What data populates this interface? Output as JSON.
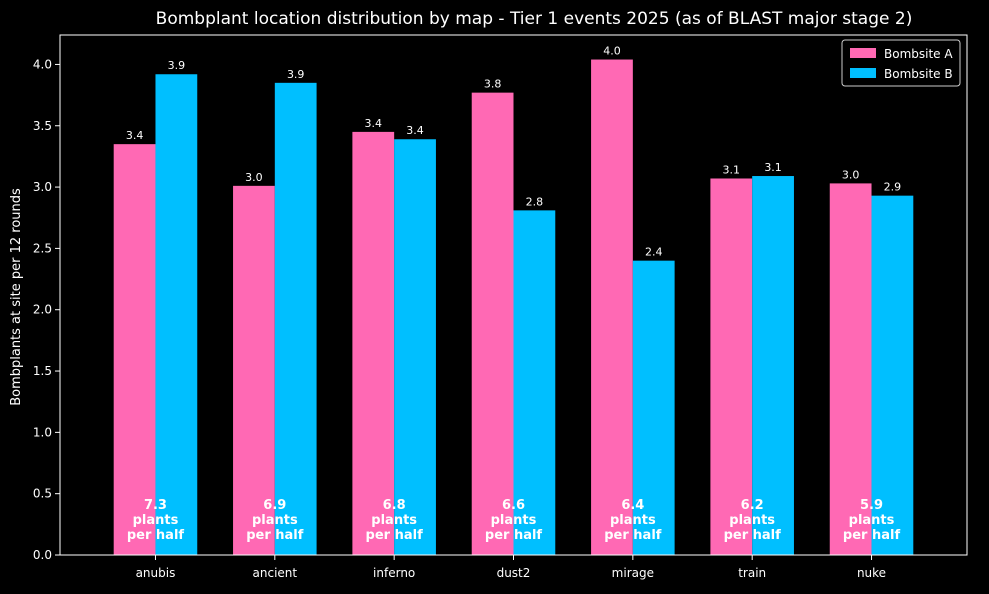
{
  "chart_data": {
    "type": "bar",
    "title": "Bombplant location distribution by map - Tier 1 events 2025 (as of BLAST major stage 2)",
    "xlabel": "",
    "ylabel": "Bombplants at site per 12 rounds",
    "categories": [
      "anubis",
      "ancient",
      "inferno",
      "dust2",
      "mirage",
      "train",
      "nuke"
    ],
    "series": [
      {
        "name": "Bombsite A",
        "color": "#ff69b4",
        "values": [
          3.35,
          3.01,
          3.45,
          3.77,
          4.04,
          3.07,
          3.03
        ],
        "labels": [
          "3.4",
          "3.0",
          "3.4",
          "3.8",
          "4.0",
          "3.1",
          "3.0"
        ]
      },
      {
        "name": "Bombsite B",
        "color": "#00bfff",
        "values": [
          3.92,
          3.85,
          3.39,
          2.81,
          2.4,
          3.09,
          2.93
        ],
        "labels": [
          "3.9",
          "3.9",
          "3.4",
          "2.8",
          "2.4",
          "3.1",
          "2.9"
        ]
      }
    ],
    "totals": [
      {
        "value": "7.3",
        "line2": "plants",
        "line3": "per half"
      },
      {
        "value": "6.9",
        "line2": "plants",
        "line3": "per half"
      },
      {
        "value": "6.8",
        "line2": "plants",
        "line3": "per half"
      },
      {
        "value": "6.6",
        "line2": "plants",
        "line3": "per half"
      },
      {
        "value": "6.4",
        "line2": "plants",
        "line3": "per half"
      },
      {
        "value": "6.2",
        "line2": "plants",
        "line3": "per half"
      },
      {
        "value": "5.9",
        "line2": "plants",
        "line3": "per half"
      }
    ],
    "ylim": [
      0,
      4.24
    ],
    "yticks": [
      "0.0",
      "0.5",
      "1.0",
      "1.5",
      "2.0",
      "2.5",
      "3.0",
      "3.5",
      "4.0"
    ],
    "grid": false,
    "legend_position": "top-right",
    "colors": {
      "background": "#000000",
      "foreground": "#ffffff"
    }
  }
}
